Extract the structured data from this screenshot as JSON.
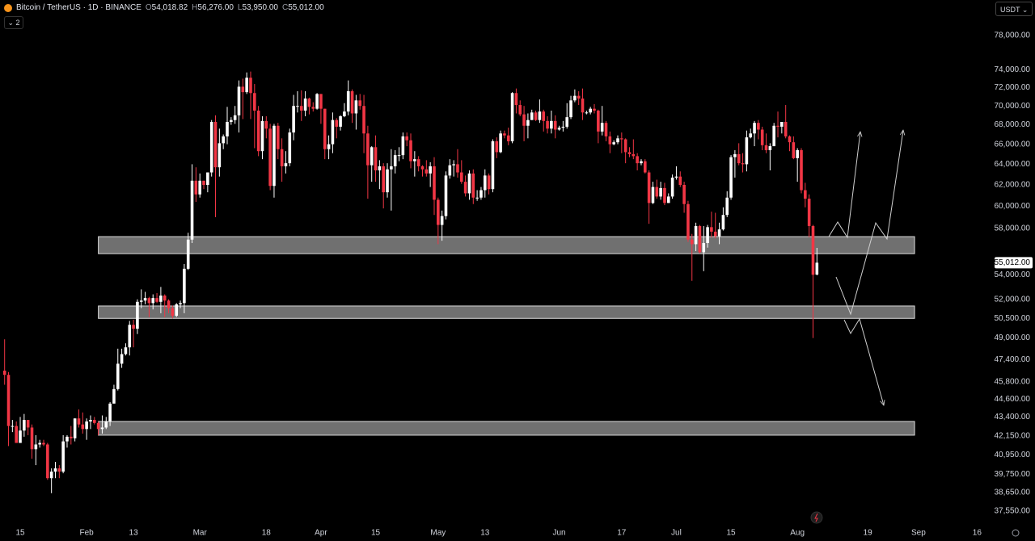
{
  "header": {
    "symbol": "Bitcoin / TetherUS · 1D · BINANCE",
    "ohlc": [
      [
        "O",
        "54,018.82"
      ],
      [
        "H",
        "56,276.00"
      ],
      [
        "L",
        "53,950.00"
      ],
      [
        "C",
        "55,012.00"
      ]
    ],
    "indicator_count": "2",
    "currency": "USDT"
  },
  "chart_data": {
    "type": "candlestick",
    "x": [
      10,
      11,
      12,
      13,
      14,
      15,
      16,
      17,
      18,
      19,
      20,
      21,
      22,
      23,
      24,
      25,
      26,
      27,
      28,
      29,
      30,
      31,
      32,
      33,
      34,
      35,
      36,
      37,
      38,
      39,
      40,
      41,
      42,
      43,
      44,
      45,
      46,
      47,
      48,
      49,
      50,
      51,
      52,
      53,
      54,
      55,
      56,
      57,
      58,
      59,
      60,
      61,
      62,
      63,
      64,
      65,
      66,
      67,
      68,
      69,
      70,
      71,
      72,
      73,
      74,
      75,
      76,
      77,
      78,
      79,
      80,
      81,
      82,
      83,
      84,
      85,
      86,
      87,
      88,
      89,
      90,
      91,
      92,
      93,
      94,
      95,
      96,
      97,
      98,
      99,
      100,
      101,
      102,
      103,
      104,
      105,
      106,
      107,
      108,
      109,
      110,
      111,
      112,
      113,
      114,
      115,
      116,
      117,
      118,
      119,
      120,
      121,
      122,
      123,
      124,
      125,
      126,
      127,
      128,
      129,
      130,
      131,
      132,
      133,
      134,
      135,
      136,
      137,
      138,
      139,
      140,
      141,
      142,
      143,
      144,
      145,
      146,
      147,
      148,
      149,
      150,
      151,
      152,
      153,
      154,
      155,
      156,
      157,
      158,
      159,
      160,
      161,
      162,
      163,
      164,
      165,
      166,
      167,
      168,
      169,
      170,
      171,
      172,
      173,
      174,
      175,
      176,
      177,
      178,
      179,
      180,
      181,
      182,
      183,
      184,
      185,
      186,
      187,
      188,
      189,
      190,
      191,
      192,
      193,
      194,
      195,
      196,
      197,
      198,
      199,
      200,
      201,
      202,
      203,
      204,
      205,
      206,
      207,
      208,
      209,
      210,
      211,
      212,
      213,
      214,
      215,
      216,
      217,
      218
    ],
    "open": [
      46600,
      46300,
      42800,
      42800,
      41700,
      42500,
      43200,
      42700,
      41300,
      41600,
      41700,
      41600,
      39500,
      39900,
      40100,
      39900,
      41800,
      42100,
      42000,
      43300,
      42900,
      42600,
      43100,
      43200,
      43000,
      42600,
      42700,
      43100,
      44300,
      45300,
      47100,
      47800,
      48300,
      50000,
      49700,
      51800,
      51900,
      52100,
      51700,
      52100,
      51800,
      52300,
      51900,
      51300,
      50700,
      51600,
      51700,
      54500,
      57000,
      62400,
      61100,
      62400,
      62000,
      63200,
      68300,
      63700,
      66100,
      66800,
      68300,
      68500,
      69000,
      72100,
      71500,
      73100,
      71400,
      69500,
      65300,
      68400,
      67600,
      61900,
      67900,
      65500,
      63800,
      64100,
      67200,
      70000,
      70000,
      69500,
      70800,
      69900,
      69700,
      71300,
      69700,
      65500,
      66000,
      68500,
      67800,
      68900,
      69400,
      71600,
      69200,
      70600,
      70000,
      67100,
      63900,
      65700,
      63400,
      63800,
      61300,
      63500,
      63800,
      64900,
      64900,
      66800,
      66400,
      64300,
      64500,
      63800,
      63500,
      63100,
      63800,
      60600,
      58300,
      59100,
      62900,
      63900,
      64000,
      63200,
      62300,
      61200,
      63100,
      60800,
      60800,
      61500,
      62900,
      61600,
      66300,
      65200,
      67100,
      66900,
      66300,
      71400,
      70100,
      69100,
      67900,
      68500,
      69300,
      68500,
      69400,
      68400,
      67600,
      68400,
      67500,
      67700,
      67800,
      68800,
      70600,
      71100,
      70800,
      69300,
      69300,
      69700,
      69500,
      67300,
      68200,
      66800,
      66000,
      66200,
      66600,
      66500,
      65200,
      65000,
      64800,
      64100,
      64300,
      63200,
      60300,
      61800,
      60900,
      61700,
      60300,
      60900,
      62700,
      62800,
      62000,
      60200,
      57000,
      56600,
      58200,
      55900,
      56700,
      58100,
      57700,
      57300,
      57900,
      59200,
      60800,
      64700,
      65000,
      64100,
      64000,
      66700,
      67100,
      68200,
      67500,
      65900,
      65400,
      65800,
      67900,
      67800,
      68300,
      66800,
      66200,
      64600,
      65400,
      61500,
      60700,
      58200,
      54018.82
    ],
    "high": [
      48900,
      46500,
      43200,
      43100,
      43400,
      43600,
      43200,
      42900,
      42200,
      41900,
      41900,
      41700,
      40100,
      40500,
      40300,
      42200,
      42200,
      42800,
      43300,
      43900,
      43700,
      43300,
      43500,
      43400,
      43100,
      43500,
      43400,
      44400,
      45600,
      48200,
      48200,
      48600,
      50300,
      50400,
      52000,
      52800,
      52600,
      52200,
      52400,
      52500,
      53000,
      52400,
      52000,
      51500,
      51700,
      51900,
      54900,
      57600,
      64000,
      63700,
      63100,
      62400,
      63200,
      68500,
      69000,
      67600,
      67000,
      69900,
      68800,
      70000,
      72800,
      73000,
      73700,
      73800,
      72400,
      70000,
      68900,
      68900,
      68100,
      68100,
      68200,
      66600,
      65300,
      67600,
      71200,
      71600,
      71700,
      71600,
      70900,
      70400,
      71400,
      71300,
      69700,
      66900,
      69300,
      68700,
      69000,
      70300,
      72800,
      71800,
      71200,
      71300,
      71200,
      67900,
      65800,
      66900,
      64400,
      64100,
      64100,
      65500,
      65400,
      65700,
      67200,
      67200,
      67100,
      65300,
      64800,
      63900,
      64400,
      64200,
      64700,
      60800,
      59600,
      63300,
      64500,
      64400,
      65500,
      64400,
      62900,
      63400,
      63500,
      61500,
      61800,
      63500,
      63100,
      66500,
      66700,
      67400,
      67400,
      67700,
      71500,
      71900,
      70600,
      70000,
      69200,
      69600,
      69500,
      70700,
      69600,
      68900,
      69500,
      69000,
      67900,
      68400,
      70300,
      71100,
      71800,
      71600,
      71900,
      69500,
      69900,
      70200,
      69600,
      70000,
      68400,
      67300,
      66400,
      66900,
      67200,
      66600,
      65700,
      66500,
      65100,
      64500,
      64500,
      63400,
      62300,
      62500,
      62300,
      62200,
      61200,
      63000,
      63800,
      63300,
      62300,
      60500,
      57500,
      58500,
      58300,
      58200,
      58300,
      59500,
      59400,
      58500,
      59900,
      61400,
      64900,
      65400,
      66100,
      65100,
      67400,
      67600,
      68400,
      68500,
      67800,
      67100,
      66100,
      68200,
      69400,
      68300,
      70100,
      66900,
      66800,
      65600,
      65600,
      62200,
      61100,
      58300,
      56276
    ],
    "low": [
      45600,
      41500,
      42400,
      41700,
      41700,
      42100,
      42200,
      40700,
      40300,
      41400,
      41500,
      39400,
      38600,
      39500,
      39500,
      39800,
      41400,
      41600,
      41800,
      42700,
      42300,
      41900,
      42600,
      42900,
      42200,
      42300,
      42600,
      42800,
      44300,
      45200,
      46800,
      47700,
      47700,
      48300,
      49300,
      51300,
      51600,
      50600,
      51200,
      51700,
      50900,
      50600,
      50900,
      50500,
      50600,
      51300,
      50900,
      54400,
      56700,
      60400,
      60800,
      61600,
      61300,
      62800,
      59000,
      62800,
      65500,
      66000,
      68000,
      68100,
      67200,
      68600,
      71300,
      68600,
      65600,
      64800,
      64500,
      66600,
      61500,
      60800,
      64500,
      62300,
      63100,
      63800,
      66400,
      69300,
      68400,
      68900,
      69100,
      69400,
      69600,
      68100,
      64500,
      64500,
      65100,
      66600,
      67400,
      68800,
      69000,
      68200,
      67500,
      69600,
      65100,
      60700,
      62300,
      62300,
      61600,
      59800,
      60800,
      59600,
      63100,
      64300,
      64500,
      65800,
      63600,
      62800,
      63300,
      62800,
      62800,
      61800,
      59200,
      56600,
      56900,
      58800,
      62600,
      62800,
      62700,
      62100,
      60900,
      60600,
      60200,
      60500,
      60600,
      60800,
      61100,
      61300,
      64600,
      65100,
      66600,
      65900,
      66100,
      69200,
      68900,
      66300,
      66600,
      68500,
      68400,
      68200,
      67300,
      67100,
      67100,
      66600,
      67400,
      67300,
      67600,
      68600,
      70400,
      70100,
      68500,
      69100,
      69100,
      69200,
      66100,
      66900,
      66300,
      65100,
      65900,
      66000,
      65100,
      64100,
      64700,
      64500,
      63400,
      63900,
      63100,
      58400,
      60200,
      60700,
      60600,
      60100,
      60300,
      60700,
      62500,
      61800,
      59400,
      56800,
      53500,
      56000,
      55800,
      54300,
      56300,
      57200,
      57100,
      56600,
      57800,
      59000,
      60600,
      62700,
      63900,
      63200,
      63300,
      66600,
      65800,
      66500,
      65400,
      65100,
      63400,
      65800,
      66700,
      67100,
      66600,
      65300,
      64500,
      62300,
      61200,
      59900,
      57200,
      49000,
      53950
    ],
    "close": [
      46300,
      42800,
      42800,
      41700,
      42500,
      43200,
      42700,
      41300,
      41600,
      41700,
      41600,
      39500,
      39900,
      40100,
      39900,
      41800,
      42100,
      42000,
      43300,
      42900,
      42600,
      43100,
      43200,
      43000,
      42600,
      42700,
      43100,
      44300,
      45300,
      47100,
      47800,
      48300,
      50000,
      49700,
      51800,
      51900,
      52100,
      51700,
      52100,
      51800,
      52300,
      51900,
      51300,
      50700,
      51600,
      51700,
      54500,
      57000,
      62400,
      61100,
      62400,
      62000,
      63200,
      68300,
      63700,
      66100,
      66800,
      68300,
      68500,
      69000,
      72100,
      71500,
      73100,
      71400,
      69500,
      65300,
      68400,
      67600,
      61900,
      67900,
      65500,
      63800,
      64100,
      67200,
      70000,
      70000,
      69500,
      70800,
      69900,
      69700,
      71300,
      69700,
      65500,
      66000,
      68500,
      67800,
      68900,
      69400,
      71600,
      69200,
      70600,
      70000,
      67100,
      63900,
      65700,
      63400,
      63800,
      61300,
      63500,
      63800,
      64900,
      64900,
      66800,
      66400,
      64300,
      64500,
      63800,
      63500,
      63100,
      63800,
      60600,
      58300,
      59100,
      62900,
      63900,
      64000,
      63200,
      62300,
      61200,
      63100,
      60800,
      60800,
      61500,
      62900,
      61600,
      66300,
      65200,
      67100,
      66900,
      66300,
      71400,
      70100,
      69100,
      67900,
      68500,
      69300,
      68500,
      69400,
      68400,
      67600,
      68400,
      67500,
      67700,
      67800,
      68800,
      70600,
      71100,
      70800,
      69300,
      69300,
      69700,
      69500,
      67300,
      68200,
      66800,
      66000,
      66200,
      66600,
      66500,
      65200,
      65000,
      64800,
      64100,
      64300,
      63200,
      60300,
      61800,
      60900,
      61700,
      60300,
      60900,
      62700,
      62800,
      62000,
      60200,
      57000,
      56600,
      58200,
      55900,
      56700,
      58100,
      57700,
      57300,
      57900,
      59200,
      60800,
      64700,
      65000,
      64100,
      64000,
      66700,
      67100,
      68200,
      67500,
      65900,
      65400,
      65800,
      67900,
      67800,
      68300,
      66800,
      66200,
      64600,
      65400,
      61500,
      60700,
      58200,
      54000,
      55012
    ],
    "up_color": "#ffffff",
    "down_color": "#f23645",
    "xlim": [
      8.82,
      263.07
    ],
    "xticks": [
      {
        "value": 14,
        "label": "15"
      },
      {
        "value": 31,
        "label": "Feb"
      },
      {
        "value": 43,
        "label": "13"
      },
      {
        "value": 60,
        "label": "Mar"
      },
      {
        "value": 77,
        "label": "18"
      },
      {
        "value": 91,
        "label": "Apr"
      },
      {
        "value": 105,
        "label": "15"
      },
      {
        "value": 121,
        "label": "May"
      },
      {
        "value": 133,
        "label": "13"
      },
      {
        "value": 152,
        "label": "Jun"
      },
      {
        "value": 168,
        "label": "17"
      },
      {
        "value": 182,
        "label": "Jul"
      },
      {
        "value": 196,
        "label": "15"
      },
      {
        "value": 213,
        "label": "Aug"
      },
      {
        "value": 231,
        "label": "19"
      },
      {
        "value": 244,
        "label": "Sep"
      },
      {
        "value": 259,
        "label": "16"
      }
    ],
    "ylim": [
      36675,
      82380
    ],
    "yticks": [
      {
        "value": 78000,
        "label": "78,000.00"
      },
      {
        "value": 74000,
        "label": "74,000.00"
      },
      {
        "value": 72000,
        "label": "72,000.00"
      },
      {
        "value": 70000,
        "label": "70,000.00"
      },
      {
        "value": 68000,
        "label": "68,000.00"
      },
      {
        "value": 66000,
        "label": "66,000.00"
      },
      {
        "value": 64000,
        "label": "64,000.00"
      },
      {
        "value": 62000,
        "label": "62,000.00"
      },
      {
        "value": 60000,
        "label": "60,000.00"
      },
      {
        "value": 58000,
        "label": "58,000.00"
      },
      {
        "value": 54000,
        "label": "54,000.00"
      },
      {
        "value": 52000,
        "label": "52,000.00"
      },
      {
        "value": 50500,
        "label": "50,500.00"
      },
      {
        "value": 49000,
        "label": "49,000.00"
      },
      {
        "value": 47400,
        "label": "47,400.00"
      },
      {
        "value": 45800,
        "label": "45,800.00"
      },
      {
        "value": 44600,
        "label": "44,600.00"
      },
      {
        "value": 43400,
        "label": "43,400.00"
      },
      {
        "value": 42150,
        "label": "42,150.00"
      },
      {
        "value": 40950,
        "label": "40,950.00"
      },
      {
        "value": 39750,
        "label": "39,750.00"
      },
      {
        "value": 38650,
        "label": "38,650.00"
      },
      {
        "value": 37550,
        "label": "37,550.00"
      }
    ],
    "log_scale": true,
    "grid": false,
    "last_price": {
      "value": 55012,
      "label": "55,012.00"
    },
    "zones": [
      {
        "low": 55780,
        "high": 57260,
        "start": 34,
        "end": 243
      },
      {
        "low": 50500,
        "high": 51470,
        "start": 34,
        "end": 243
      },
      {
        "low": 42200,
        "high": 43100,
        "start": 34,
        "end": 243
      }
    ]
  }
}
